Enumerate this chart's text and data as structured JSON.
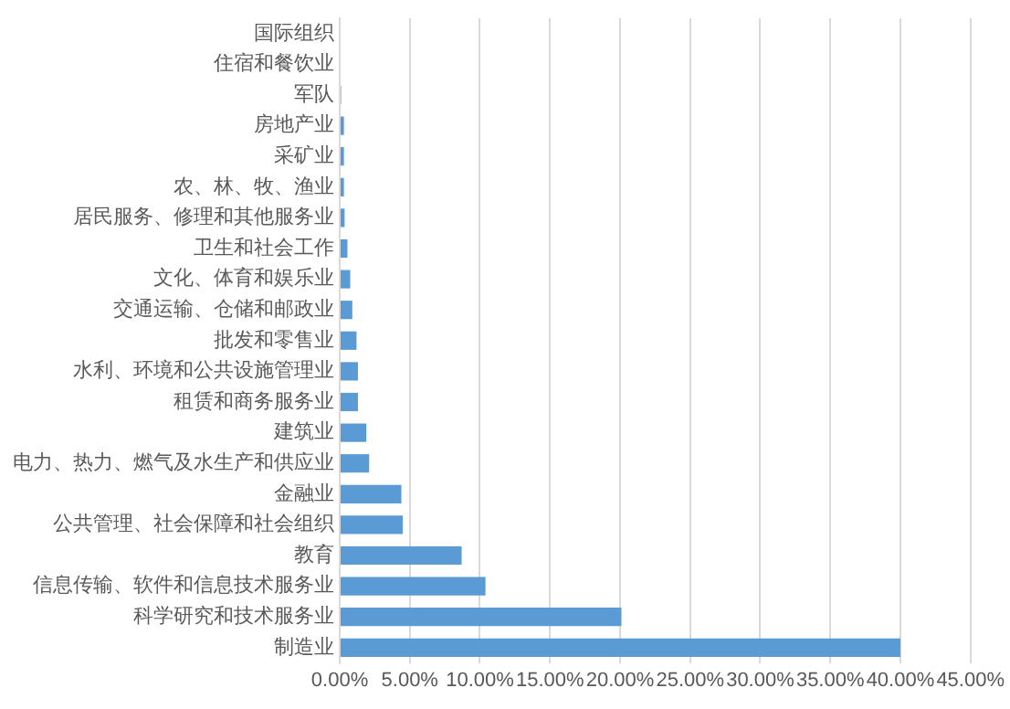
{
  "chart_data": {
    "type": "bar",
    "orientation": "horizontal",
    "categories": [
      "国际组织",
      "住宿和餐饮业",
      "军队",
      "房地产业",
      "采矿业",
      "农、林、牧、渔业",
      "居民服务、修理和其他服务业",
      "卫生和社会工作",
      "文化、体育和娱乐业",
      "交通运输、仓储和邮政业",
      "批发和零售业",
      "水利、环境和公共设施管理业",
      "租赁和商务服务业",
      "建筑业",
      "电力、热力、燃气及水生产和供应业",
      "金融业",
      "公共管理、社会保障和社会组织",
      "教育",
      "信息传输、软件和信息技术服务业",
      "科学研究和技术服务业",
      "制造业"
    ],
    "values": [
      0,
      0,
      0.1,
      0.3,
      0.3,
      0.3,
      0.35,
      0.55,
      0.75,
      0.9,
      1.2,
      1.3,
      1.3,
      1.9,
      2.1,
      4.4,
      4.5,
      8.7,
      10.4,
      20.1,
      40.0
    ],
    "color": "#5b9bd5",
    "xlim": [
      0,
      45
    ],
    "xticks": [
      {
        "value": 0,
        "label": "0.00%"
      },
      {
        "value": 5,
        "label": "5.00%"
      },
      {
        "value": 10,
        "label": "10.00%"
      },
      {
        "value": 15,
        "label": "15.00%"
      },
      {
        "value": 20,
        "label": "20.00%"
      },
      {
        "value": 25,
        "label": "25.00%"
      },
      {
        "value": 30,
        "label": "30.00%"
      },
      {
        "value": 35,
        "label": "35.00%"
      },
      {
        "value": 40,
        "label": "40.00%"
      },
      {
        "value": 45,
        "label": "45.00%"
      }
    ],
    "grid": "x",
    "legend": false
  }
}
